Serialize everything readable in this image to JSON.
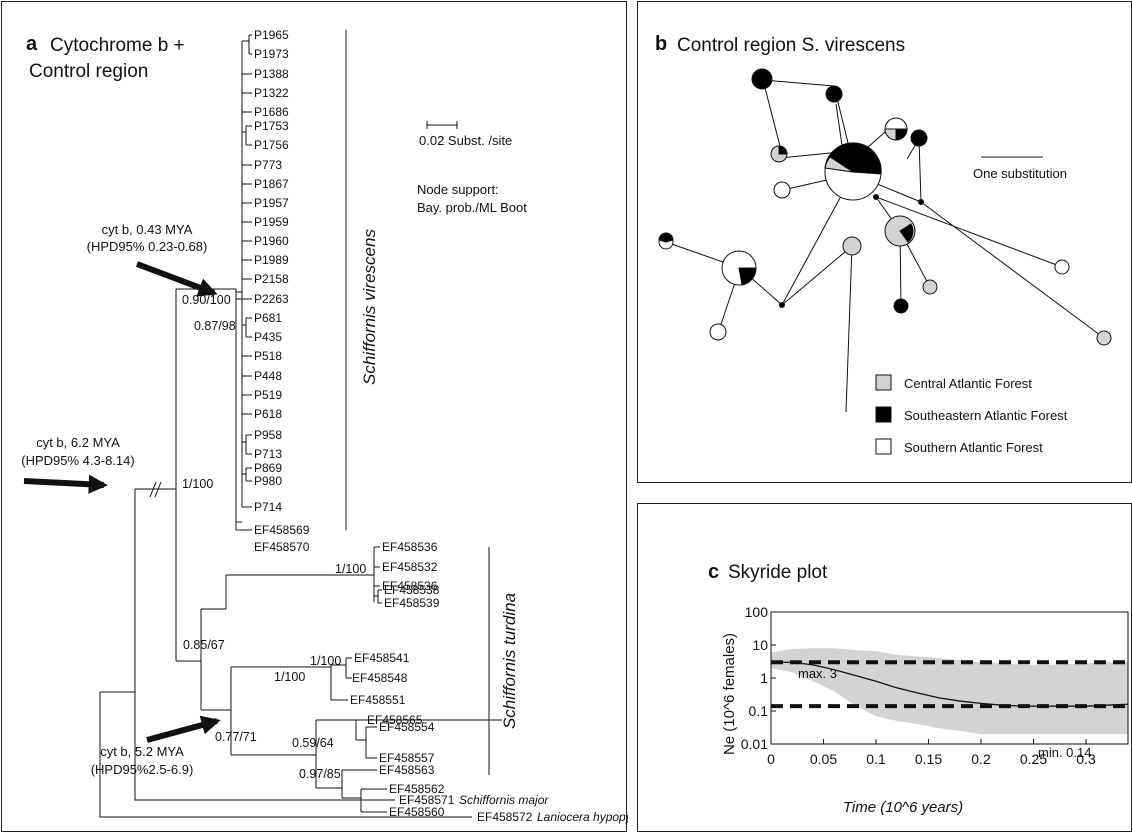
{
  "panel_a": {
    "letter": "a",
    "title_line1": "Cytochrome b +",
    "title_line2": "Control region",
    "scale_label": "0.02 Subst. /site",
    "node_support_line1": "Node support:",
    "node_support_line2": "Bay. prob./ML Boot",
    "annotation_1_line1": "cyt b, 0.43 MYA",
    "annotation_1_line2": "(HPD95% 0.23-0.68)",
    "annotation_2_line1": "cyt b, 6.2 MYA",
    "annotation_2_line2": "(HPD95% 4.3-8.14)",
    "annotation_3_line1": "cyt b, 5.2 MYA",
    "annotation_3_line2": "(HPD95%2.5-6.9)",
    "clade_virescens": "Schiffornis virescens",
    "clade_turdina": "Schiffornis turdina",
    "virescens_leaves": [
      "P1965",
      "P1973",
      "P1388",
      "P1322",
      "P1686",
      "P1753",
      "P1756",
      "P773",
      "P1867",
      "P1957",
      "P1959",
      "P1960",
      "P1989",
      "P2158",
      "P2263",
      "P681",
      "P435",
      "P518",
      "P448",
      "P519",
      "P618",
      "P958",
      "P713",
      "P869",
      "P980",
      "P714",
      "EF458569",
      "EF458570"
    ],
    "turdina_leaves": [
      "EF458536",
      "EF458532",
      "EF458536",
      "EF458538",
      "EF458539",
      "EF458541",
      "EF458548",
      "EF458551",
      "EF458565",
      "EF458554",
      "EF458557",
      "EF458563",
      "EF458562",
      "EF458560"
    ],
    "outgroup_1_id": "EF458571",
    "outgroup_1_name": "Schiffornis major",
    "outgroup_2_id": "EF458572",
    "outgroup_2_name": "Laniocera hypopyrra",
    "supports": {
      "s_090_100": "0.90/100",
      "s_087_98": "0.87/98",
      "s_1_100_root": "1/100",
      "s_1_100_a": "1/100",
      "s_085_67": "0.85/67",
      "s_1_100_b": "1/100",
      "s_1_100_c": "1/100",
      "s_077_71": "0.77/71",
      "s_059_64": "0.59/64",
      "s_097_85": "0.97/85"
    }
  },
  "panel_b": {
    "letter": "b",
    "title": "Control region S. virescens",
    "scale_label": "One substitution",
    "legend": [
      {
        "label": "Central Atlantic Forest",
        "color": "#d3d3d3"
      },
      {
        "label": "Southeastern Atlantic Forest",
        "color": "#000000"
      },
      {
        "label": "Southern Atlantic Forest",
        "color": "#ffffff"
      }
    ]
  },
  "panel_c": {
    "letter": "c",
    "title": "Skyride plot",
    "ylabel": "Ne (10^6 females)",
    "xlabel": "Time (10^6 years)",
    "max_label": "max. 3",
    "min_label": "min. 0.14",
    "chart_data": {
      "type": "area",
      "title": "Skyride plot",
      "xlabel": "Time (10^6 years)",
      "ylabel": "Ne (10^6 females)",
      "xlim": [
        0,
        0.34
      ],
      "ylim": [
        0.01,
        100
      ],
      "y_scale": "log",
      "x_ticks": [
        "0",
        "0.05",
        "0.1",
        "0.15",
        "0.2",
        "0.25",
        "0.3"
      ],
      "y_ticks": [
        "0.01",
        "0.1",
        "1",
        "10",
        "100"
      ],
      "median": {
        "x": [
          0,
          0.02,
          0.04,
          0.06,
          0.08,
          0.1,
          0.12,
          0.14,
          0.16,
          0.18,
          0.2,
          0.22,
          0.24,
          0.26,
          0.28,
          0.3,
          0.32,
          0.34
        ],
        "y": [
          3,
          3.0,
          2.5,
          1.8,
          1.2,
          0.8,
          0.5,
          0.35,
          0.25,
          0.2,
          0.17,
          0.15,
          0.14,
          0.14,
          0.14,
          0.14,
          0.15,
          0.16
        ]
      },
      "hpd_upper": [
        6,
        7.5,
        8,
        8,
        7,
        6.5,
        5,
        4.5,
        4,
        3.5,
        3,
        2.8,
        2.5,
        2.5,
        2.6,
        2.8,
        3,
        3
      ],
      "hpd_lower": [
        2,
        1.5,
        0.8,
        0.4,
        0.15,
        0.07,
        0.05,
        0.04,
        0.03,
        0.025,
        0.02,
        0.02,
        0.02,
        0.02,
        0.02,
        0.02,
        0.02,
        0.02
      ],
      "reference_lines": [
        3,
        0.14
      ],
      "grid": false
    }
  }
}
